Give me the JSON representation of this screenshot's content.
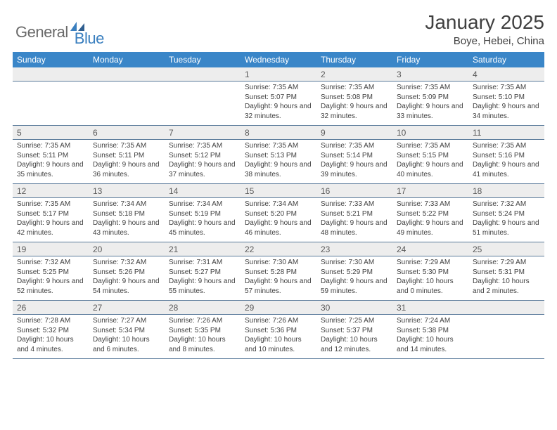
{
  "logo": {
    "part1": "General",
    "part2": "Blue"
  },
  "title": "January 2025",
  "location": "Boye, Hebei, China",
  "colors": {
    "header_bg": "#3a86c8",
    "header_text": "#ffffff",
    "daynum_bg": "#ededed",
    "border": "#5a7a9a",
    "logo_gray": "#6a6a6a",
    "logo_blue": "#3a7fbf"
  },
  "weekdays": [
    "Sunday",
    "Monday",
    "Tuesday",
    "Wednesday",
    "Thursday",
    "Friday",
    "Saturday"
  ],
  "weeks": [
    [
      null,
      null,
      null,
      {
        "n": "1",
        "sr": "7:35 AM",
        "ss": "5:07 PM",
        "dl": "9 hours and 32 minutes."
      },
      {
        "n": "2",
        "sr": "7:35 AM",
        "ss": "5:08 PM",
        "dl": "9 hours and 32 minutes."
      },
      {
        "n": "3",
        "sr": "7:35 AM",
        "ss": "5:09 PM",
        "dl": "9 hours and 33 minutes."
      },
      {
        "n": "4",
        "sr": "7:35 AM",
        "ss": "5:10 PM",
        "dl": "9 hours and 34 minutes."
      }
    ],
    [
      {
        "n": "5",
        "sr": "7:35 AM",
        "ss": "5:11 PM",
        "dl": "9 hours and 35 minutes."
      },
      {
        "n": "6",
        "sr": "7:35 AM",
        "ss": "5:11 PM",
        "dl": "9 hours and 36 minutes."
      },
      {
        "n": "7",
        "sr": "7:35 AM",
        "ss": "5:12 PM",
        "dl": "9 hours and 37 minutes."
      },
      {
        "n": "8",
        "sr": "7:35 AM",
        "ss": "5:13 PM",
        "dl": "9 hours and 38 minutes."
      },
      {
        "n": "9",
        "sr": "7:35 AM",
        "ss": "5:14 PM",
        "dl": "9 hours and 39 minutes."
      },
      {
        "n": "10",
        "sr": "7:35 AM",
        "ss": "5:15 PM",
        "dl": "9 hours and 40 minutes."
      },
      {
        "n": "11",
        "sr": "7:35 AM",
        "ss": "5:16 PM",
        "dl": "9 hours and 41 minutes."
      }
    ],
    [
      {
        "n": "12",
        "sr": "7:35 AM",
        "ss": "5:17 PM",
        "dl": "9 hours and 42 minutes."
      },
      {
        "n": "13",
        "sr": "7:34 AM",
        "ss": "5:18 PM",
        "dl": "9 hours and 43 minutes."
      },
      {
        "n": "14",
        "sr": "7:34 AM",
        "ss": "5:19 PM",
        "dl": "9 hours and 45 minutes."
      },
      {
        "n": "15",
        "sr": "7:34 AM",
        "ss": "5:20 PM",
        "dl": "9 hours and 46 minutes."
      },
      {
        "n": "16",
        "sr": "7:33 AM",
        "ss": "5:21 PM",
        "dl": "9 hours and 48 minutes."
      },
      {
        "n": "17",
        "sr": "7:33 AM",
        "ss": "5:22 PM",
        "dl": "9 hours and 49 minutes."
      },
      {
        "n": "18",
        "sr": "7:32 AM",
        "ss": "5:24 PM",
        "dl": "9 hours and 51 minutes."
      }
    ],
    [
      {
        "n": "19",
        "sr": "7:32 AM",
        "ss": "5:25 PM",
        "dl": "9 hours and 52 minutes."
      },
      {
        "n": "20",
        "sr": "7:32 AM",
        "ss": "5:26 PM",
        "dl": "9 hours and 54 minutes."
      },
      {
        "n": "21",
        "sr": "7:31 AM",
        "ss": "5:27 PM",
        "dl": "9 hours and 55 minutes."
      },
      {
        "n": "22",
        "sr": "7:30 AM",
        "ss": "5:28 PM",
        "dl": "9 hours and 57 minutes."
      },
      {
        "n": "23",
        "sr": "7:30 AM",
        "ss": "5:29 PM",
        "dl": "9 hours and 59 minutes."
      },
      {
        "n": "24",
        "sr": "7:29 AM",
        "ss": "5:30 PM",
        "dl": "10 hours and 0 minutes."
      },
      {
        "n": "25",
        "sr": "7:29 AM",
        "ss": "5:31 PM",
        "dl": "10 hours and 2 minutes."
      }
    ],
    [
      {
        "n": "26",
        "sr": "7:28 AM",
        "ss": "5:32 PM",
        "dl": "10 hours and 4 minutes."
      },
      {
        "n": "27",
        "sr": "7:27 AM",
        "ss": "5:34 PM",
        "dl": "10 hours and 6 minutes."
      },
      {
        "n": "28",
        "sr": "7:26 AM",
        "ss": "5:35 PM",
        "dl": "10 hours and 8 minutes."
      },
      {
        "n": "29",
        "sr": "7:26 AM",
        "ss": "5:36 PM",
        "dl": "10 hours and 10 minutes."
      },
      {
        "n": "30",
        "sr": "7:25 AM",
        "ss": "5:37 PM",
        "dl": "10 hours and 12 minutes."
      },
      {
        "n": "31",
        "sr": "7:24 AM",
        "ss": "5:38 PM",
        "dl": "10 hours and 14 minutes."
      },
      null
    ]
  ],
  "labels": {
    "sunrise": "Sunrise:",
    "sunset": "Sunset:",
    "daylight": "Daylight:"
  }
}
